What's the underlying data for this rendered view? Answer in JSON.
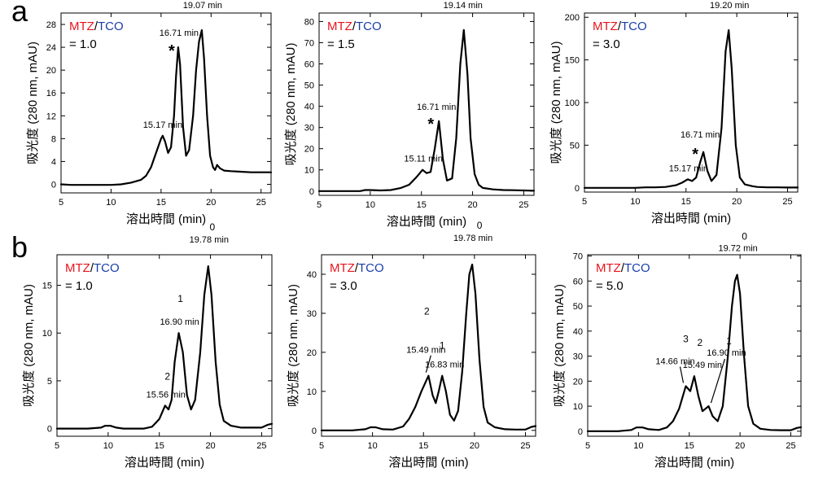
{
  "figure": {
    "panels": [
      {
        "letter": "a"
      },
      {
        "letter": "b"
      }
    ]
  },
  "colors": {
    "mtz": "#e8141c",
    "tco": "#1a3ea8",
    "line": "#000000"
  },
  "chart_data": [
    {
      "type": "line",
      "panel": "a",
      "ratio_label": {
        "mtz": "MTZ",
        "sep": "/",
        "tco": "TCO",
        "value": "= 1.0"
      },
      "xlabel": "溶出時間 (min)",
      "ylabel": "吸光度 (280 nm, mAU)",
      "xlim": [
        5,
        26
      ],
      "ylim": [
        -1.5,
        30
      ],
      "xticks": [
        5,
        10,
        15,
        20,
        25
      ],
      "yticks": [
        0,
        4,
        8,
        12,
        16,
        20,
        24,
        28
      ],
      "series": [
        {
          "x": [
            5,
            6,
            8,
            10,
            11,
            12,
            13,
            13.5,
            14,
            14.5,
            15,
            15.17,
            15.4,
            15.7,
            16,
            16.3,
            16.5,
            16.71,
            16.9,
            17.2,
            17.5,
            17.8,
            18.2,
            18.5,
            18.8,
            19.07,
            19.3,
            19.6,
            19.9,
            20.2,
            20.4,
            20.6,
            20.9,
            21.3,
            22,
            23,
            24,
            25,
            26
          ],
          "y": [
            0,
            -0.1,
            -0.1,
            -0.1,
            0,
            0.3,
            0.8,
            1.5,
            3,
            5.5,
            8,
            8.5,
            7.5,
            5.5,
            6.5,
            12,
            19,
            24,
            21,
            10,
            5,
            6,
            12,
            20,
            25,
            27,
            22,
            12,
            5,
            3,
            2.5,
            3.4,
            2.8,
            2.4,
            2.3,
            2.2,
            2.1,
            2.1,
            2.1
          ]
        }
      ],
      "annotations": [
        {
          "x": 15.17,
          "y": 8.5,
          "text": "15.17 min"
        },
        {
          "x": 16.71,
          "y": 24,
          "text": "16.71 min",
          "star": "*"
        },
        {
          "x": 19.07,
          "y": 27,
          "text": "19.07 min",
          "label": "0"
        }
      ]
    },
    {
      "type": "line",
      "panel": "a",
      "ratio_label": {
        "mtz": "MTZ",
        "sep": "/",
        "tco": "TCO",
        "value": "= 1.5"
      },
      "xlabel": "溶出時間 (min)",
      "ylabel": "吸光度 (280 nm, mAU)",
      "xlim": [
        5,
        26
      ],
      "ylim": [
        -2,
        84
      ],
      "xticks": [
        5,
        10,
        15,
        20,
        25
      ],
      "yticks": [
        0,
        10,
        20,
        30,
        40,
        50,
        60,
        70,
        80
      ],
      "series": [
        {
          "x": [
            5,
            7,
            9,
            9.5,
            10,
            11,
            12,
            13,
            13.8,
            14.5,
            15.11,
            15.5,
            15.9,
            16.3,
            16.71,
            17.1,
            17.5,
            18,
            18.4,
            18.8,
            19.14,
            19.5,
            19.8,
            20.2,
            20.6,
            21,
            22,
            23,
            24,
            25,
            26
          ],
          "y": [
            0,
            0,
            0,
            0.5,
            0.5,
            0.3,
            0.5,
            1.5,
            3,
            6.5,
            10,
            8.5,
            9,
            20,
            33,
            15,
            5,
            6,
            25,
            60,
            76,
            55,
            25,
            8,
            3,
            1.5,
            0.8,
            0.5,
            0.4,
            0.3,
            0.2
          ]
        }
      ],
      "annotations": [
        {
          "x": 15.11,
          "y": 10,
          "text": "15.11 min"
        },
        {
          "x": 16.71,
          "y": 33,
          "text": "16.71 min",
          "star": "*"
        },
        {
          "x": 19.14,
          "y": 76,
          "text": "19.14 min",
          "label": "0"
        }
      ]
    },
    {
      "type": "line",
      "panel": "a",
      "ratio_label": {
        "mtz": "MTZ",
        "sep": "/",
        "tco": "TCO",
        "value": "= 3.0"
      },
      "xlabel": "溶出時間 (min)",
      "ylabel": "吸光度 (280 nm, mAU)",
      "xlim": [
        5,
        26
      ],
      "ylim": [
        -5,
        205
      ],
      "xticks": [
        5,
        10,
        15,
        20,
        25
      ],
      "yticks": [
        0,
        50,
        100,
        150,
        200
      ],
      "series": [
        {
          "x": [
            5,
            8,
            10,
            11,
            12,
            13,
            14,
            14.6,
            15.17,
            15.6,
            16,
            16.4,
            16.71,
            17.1,
            17.5,
            18,
            18.5,
            18.9,
            19.2,
            19.5,
            19.9,
            20.3,
            20.8,
            21.5,
            22,
            23,
            24,
            25,
            26
          ],
          "y": [
            0,
            0,
            0,
            0.5,
            0.5,
            1,
            3,
            6,
            10,
            8,
            12,
            30,
            42,
            20,
            8,
            15,
            70,
            160,
            185,
            140,
            50,
            12,
            4,
            2,
            1,
            0.5,
            0.5,
            0.3,
            0.3
          ]
        }
      ],
      "annotations": [
        {
          "x": 15.17,
          "y": 10,
          "text": "15.17 min"
        },
        {
          "x": 16.71,
          "y": 42,
          "text": "16.71 min",
          "star": "*"
        },
        {
          "x": 19.2,
          "y": 185,
          "text": "19.20 min",
          "label": "0"
        }
      ]
    },
    {
      "type": "line",
      "panel": "b",
      "ratio_label": {
        "mtz": "MTZ",
        "sep": "/",
        "tco": "TCO",
        "value": "= 1.0"
      },
      "xlabel": "溶出時間 (min)",
      "ylabel": "吸光度 (280 nm, mAU)",
      "xlim": [
        5,
        26
      ],
      "ylim": [
        -0.8,
        18.2
      ],
      "xticks": [
        5,
        10,
        15,
        20,
        25
      ],
      "yticks": [
        0,
        5,
        10,
        15
      ],
      "series": [
        {
          "x": [
            5,
            8,
            9.3,
            9.7,
            10.2,
            10.8,
            11.5,
            12.5,
            13.5,
            14.3,
            15,
            15.56,
            15.9,
            16.2,
            16.5,
            16.9,
            17.3,
            17.7,
            18.1,
            18.5,
            19,
            19.4,
            19.78,
            20.1,
            20.5,
            20.9,
            21.3,
            22,
            23,
            24,
            25,
            25.6,
            26
          ],
          "y": [
            0,
            0,
            0.1,
            0.3,
            0.3,
            0.1,
            0,
            0,
            0,
            0.2,
            1,
            2.4,
            2,
            3,
            7,
            10,
            8,
            3.5,
            2,
            3,
            8,
            14,
            17,
            14,
            7,
            2.5,
            0.8,
            0.3,
            0.1,
            0.1,
            0.1,
            0.4,
            0.5
          ]
        }
      ],
      "annotations": [
        {
          "x": 15.56,
          "y": 2.4,
          "text": "15.56 min",
          "label": "2"
        },
        {
          "x": 16.9,
          "y": 10,
          "text": "16.90 min",
          "label": "1"
        },
        {
          "x": 19.78,
          "y": 17,
          "text": "19.78 min",
          "label": "0"
        }
      ]
    },
    {
      "type": "line",
      "panel": "b",
      "ratio_label": {
        "mtz": "MTZ",
        "sep": "/",
        "tco": "TCO",
        "value": "= 3.0"
      },
      "xlabel": "溶出時間 (min)",
      "ylabel": "吸光度 (280 nm, mAU)",
      "xlim": [
        5,
        26
      ],
      "ylim": [
        -1.5,
        45
      ],
      "xticks": [
        5,
        10,
        15,
        20,
        25
      ],
      "yticks": [
        0,
        10,
        20,
        30,
        40
      ],
      "series": [
        {
          "x": [
            5,
            8,
            9.3,
            9.8,
            10.3,
            11,
            12,
            13,
            13.6,
            14.2,
            14.8,
            15.49,
            15.9,
            16.2,
            16.5,
            16.83,
            17.2,
            17.6,
            18,
            18.4,
            18.8,
            19.2,
            19.5,
            19.78,
            20.1,
            20.5,
            20.9,
            21.3,
            22,
            23,
            24,
            25,
            25.6,
            26
          ],
          "y": [
            0,
            0,
            0.3,
            0.8,
            0.8,
            0.3,
            0.2,
            1,
            3,
            6,
            10,
            14,
            9,
            7,
            10,
            14,
            10,
            4,
            2.5,
            5,
            15,
            30,
            40,
            42.5,
            35,
            18,
            6,
            2,
            0.8,
            0.3,
            0.2,
            0.2,
            0.9,
            1.1
          ]
        }
      ],
      "annotations": [
        {
          "x": 15.49,
          "y": 14,
          "text": "15.49 min",
          "label": "2"
        },
        {
          "x": 16.83,
          "y": 14,
          "text": "16.83 min",
          "label": "1"
        },
        {
          "x": 19.78,
          "y": 42.5,
          "text": "19.78 min",
          "label": "0"
        }
      ]
    },
    {
      "type": "line",
      "panel": "b",
      "ratio_label": {
        "mtz": "MTZ",
        "sep": "/",
        "tco": "TCO",
        "value": "= 5.0"
      },
      "xlabel": "溶出時間 (min)",
      "ylabel": "吸光度 (280 nm, mAU)",
      "xlim": [
        5,
        26
      ],
      "ylim": [
        -2,
        70.5
      ],
      "xticks": [
        5,
        10,
        15,
        20,
        25
      ],
      "yticks": [
        0,
        10,
        20,
        30,
        40,
        50,
        60,
        70
      ],
      "series": [
        {
          "x": [
            5,
            8,
            9.3,
            9.8,
            10.4,
            11,
            12,
            12.8,
            13.4,
            14,
            14.66,
            15.1,
            15.49,
            15.9,
            16.3,
            16.9,
            17.3,
            17.8,
            18.3,
            18.8,
            19.2,
            19.5,
            19.72,
            20,
            20.4,
            20.8,
            21.3,
            22,
            23,
            24,
            25,
            25.6,
            26
          ],
          "y": [
            0,
            0,
            0.5,
            1.5,
            1.5,
            0.8,
            0.5,
            1.5,
            4,
            9,
            18,
            16,
            22,
            14,
            8,
            10,
            6,
            4,
            10,
            30,
            50,
            60,
            62.5,
            55,
            30,
            10,
            3,
            1,
            0.5,
            0.4,
            0.4,
            1.3,
            1.6
          ]
        }
      ],
      "annotations": [
        {
          "x": 14.66,
          "y": 18,
          "text": "14.66 min",
          "label": "3"
        },
        {
          "x": 15.49,
          "y": 22,
          "text": "15.49 min",
          "label": "2"
        },
        {
          "x": 16.9,
          "y": 10,
          "text": "16.90 min",
          "label": "1"
        },
        {
          "x": 19.72,
          "y": 62.5,
          "text": "19.72 min",
          "label": "0"
        }
      ]
    }
  ]
}
